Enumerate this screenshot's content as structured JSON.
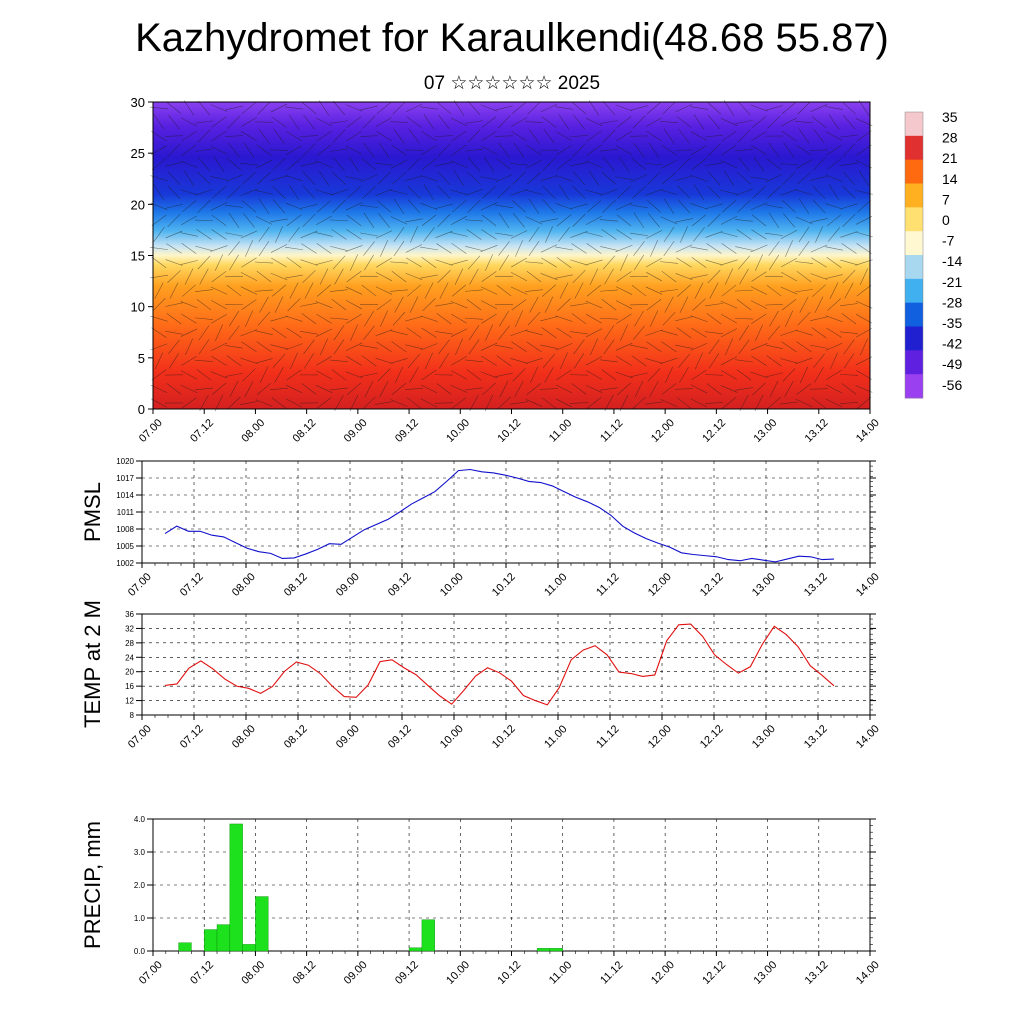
{
  "title": "Kazhydromet for Karaulkendi(48.68 55.87)",
  "subtitle": "07 ☆☆☆☆☆☆ 2025",
  "colors": {
    "pmsl": "#1010cc",
    "temp": "#e01010",
    "precip": "#1de11d"
  },
  "chart_data": [
    {
      "type": "heatmap",
      "name": "vertical cross-section",
      "ylim": [
        0,
        30
      ],
      "yticks": [
        "0",
        "5",
        "10",
        "15",
        "20",
        "25",
        "30"
      ],
      "xticks": [
        "07.00",
        "07.12",
        "08.00",
        "08.12",
        "09.00",
        "09.12",
        "10.00",
        "10.12",
        "11.00",
        "11.12",
        "12.00",
        "12.12",
        "13.00",
        "13.12",
        "14.00"
      ],
      "colorbar_labels": [
        "35",
        "28",
        "21",
        "14",
        "7",
        "0",
        "-7",
        "-14",
        "-21",
        "-28",
        "-35",
        "-42",
        "-49",
        "-56"
      ],
      "colorbar_colors": [
        "#f4c8cc",
        "#e03030",
        "#ff6a10",
        "#ffb020",
        "#ffe070",
        "#fff8d0",
        "#a8d8f0",
        "#40b0f0",
        "#1060e0",
        "#2020d0",
        "#6020e0",
        "#9a40f0"
      ]
    },
    {
      "type": "line",
      "ylabel": "PMSL",
      "ylim": [
        1002,
        1020
      ],
      "yticks": [
        "1002",
        "1005",
        "1008",
        "1011",
        "1014",
        "1017",
        "1020"
      ],
      "xticks": [
        "07.00",
        "07.12",
        "08.00",
        "08.12",
        "09.00",
        "09.12",
        "10.00",
        "10.12",
        "11.00",
        "11.12",
        "12.00",
        "12.12",
        "13.00",
        "13.12",
        "14.00"
      ],
      "values": [
        1007.2,
        1008.5,
        1007.6,
        1007.6,
        1006.9,
        1006.6,
        1005.6,
        1004.6,
        1004.0,
        1003.7,
        1002.8,
        1002.9,
        1003.6,
        1004.4,
        1005.4,
        1005.3,
        1006.6,
        1007.9,
        1008.8,
        1009.7,
        1011.0,
        1012.4,
        1013.5,
        1014.6,
        1016.4,
        1018.3,
        1018.5,
        1018.1,
        1017.9,
        1017.5,
        1017.0,
        1016.4,
        1016.2,
        1015.6,
        1014.6,
        1013.6,
        1012.8,
        1011.8,
        1010.4,
        1008.5,
        1007.3,
        1006.3,
        1005.5,
        1004.8,
        1003.8,
        1003.5,
        1003.3,
        1003.1,
        1002.6,
        1002.4,
        1002.8,
        1002.5,
        1002.2,
        1002.7,
        1003.2,
        1003.1,
        1002.6,
        1002.7
      ]
    },
    {
      "type": "line",
      "ylabel": "TEMP at 2 M",
      "ylim": [
        8,
        36
      ],
      "yticks": [
        "8",
        "12",
        "16",
        "20",
        "24",
        "28",
        "32",
        "36"
      ],
      "xticks": [
        "07.00",
        "07.12",
        "08.00",
        "08.12",
        "09.00",
        "09.12",
        "10.00",
        "10.12",
        "11.00",
        "11.12",
        "12.00",
        "12.12",
        "13.00",
        "13.12",
        "14.00"
      ],
      "values": [
        16.2,
        16.6,
        21.0,
        23.0,
        20.8,
        18.0,
        16.0,
        15.4,
        14.0,
        15.9,
        20.1,
        22.7,
        21.8,
        19.5,
        16.0,
        13.1,
        12.9,
        16.3,
        22.8,
        23.3,
        21.1,
        19.2,
        16.2,
        13.3,
        11.0,
        14.8,
        18.8,
        21.1,
        19.7,
        17.4,
        13.4,
        12.0,
        10.8,
        15.6,
        23.3,
        26.0,
        27.2,
        24.7,
        19.9,
        19.5,
        18.7,
        19.1,
        28.6,
        33.0,
        33.2,
        29.8,
        24.7,
        22.0,
        19.6,
        21.4,
        27.6,
        32.6,
        30.3,
        26.9,
        21.7,
        19.0,
        16.1
      ]
    },
    {
      "type": "bar",
      "ylabel": "PRECIP, mm",
      "ylim": [
        0,
        4
      ],
      "yticks": [
        "0.0",
        "1.0",
        "2.0",
        "3.0",
        "4.0"
      ],
      "xticks": [
        "07.00",
        "07.12",
        "08.00",
        "08.12",
        "09.00",
        "09.12",
        "10.00",
        "10.12",
        "11.00",
        "11.12",
        "12.00",
        "12.12",
        "13.00",
        "13.12",
        "14.00"
      ],
      "values": [
        0,
        0,
        0.25,
        0,
        0.65,
        0.8,
        3.85,
        0.2,
        1.65,
        0,
        0,
        0,
        0,
        0,
        0,
        0,
        0,
        0,
        0,
        0,
        0.1,
        0.95,
        0,
        0,
        0,
        0,
        0,
        0,
        0,
        0,
        0.08,
        0.08,
        0,
        0,
        0,
        0,
        0,
        0,
        0,
        0,
        0,
        0,
        0,
        0,
        0,
        0,
        0,
        0,
        0,
        0,
        0,
        0,
        0,
        0,
        0,
        0
      ]
    }
  ]
}
